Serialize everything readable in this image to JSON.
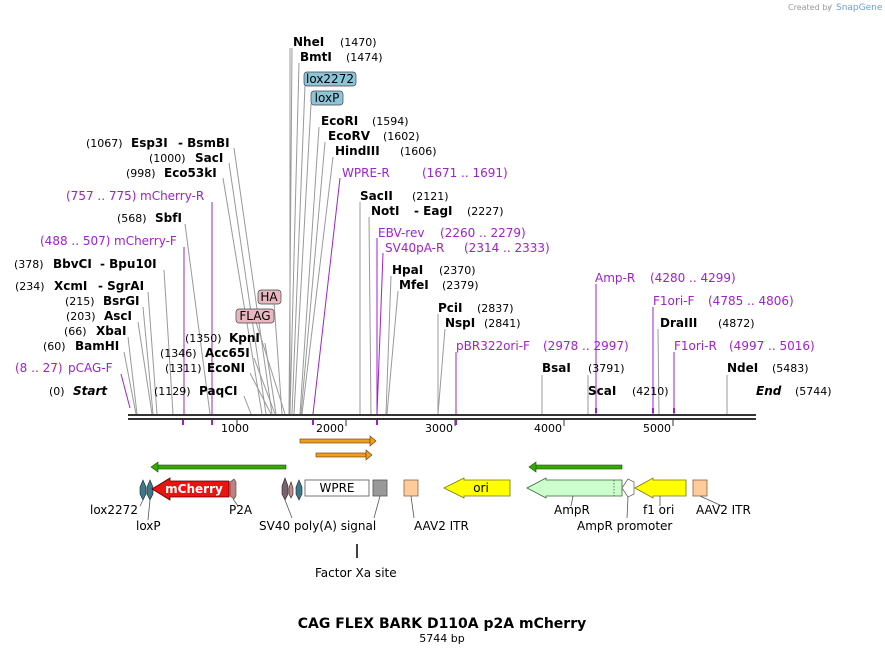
{
  "app": {
    "brand_prefix": "Created by",
    "brand_name": "SnapGene"
  },
  "map": {
    "title": "CAG FLEX BARK D110A p2A mCherry",
    "length_label": "5744 bp",
    "length": 5744,
    "axis_ticks": [
      "1000",
      "2000",
      "3000",
      "4000",
      "5000"
    ]
  },
  "enzymes": [
    {
      "id": "nhei",
      "name": "NheI",
      "pos": "(1470)"
    },
    {
      "id": "bmti",
      "name": "BmtI",
      "pos": "(1474)"
    },
    {
      "id": "ecori",
      "name": "EcoRI",
      "pos": "(1594)"
    },
    {
      "id": "ecorv",
      "name": "EcoRV",
      "pos": "(1602)"
    },
    {
      "id": "hindiii",
      "name": "HindIII",
      "pos": "(1606)"
    },
    {
      "id": "sacii",
      "name": "SacII",
      "pos": "(2121)"
    },
    {
      "id": "noti",
      "name": "NotI",
      "extra": "- EagI",
      "pos": "(2227)"
    },
    {
      "id": "hpai",
      "name": "HpaI",
      "pos": "(2370)"
    },
    {
      "id": "mfei",
      "name": "MfeI",
      "pos": "(2379)"
    },
    {
      "id": "pcii",
      "name": "PciI",
      "pos": "(2837)"
    },
    {
      "id": "nspi",
      "name": "NspI",
      "pos": "(2841)"
    },
    {
      "id": "draiii",
      "name": "DraIII",
      "pos": "(4872)"
    },
    {
      "id": "bsai",
      "name": "BsaI",
      "pos": "(3791)"
    },
    {
      "id": "scai",
      "name": "ScaI",
      "pos": "(4210)"
    },
    {
      "id": "ndei",
      "name": "NdeI",
      "pos": "(5483)"
    },
    {
      "id": "esp3i",
      "name": "Esp3I",
      "extra": "- BsmBI",
      "pos": "(1067)"
    },
    {
      "id": "saci",
      "name": "SacI",
      "pos": "(1000)"
    },
    {
      "id": "eco53ki",
      "name": "Eco53kI",
      "pos": "(998)"
    },
    {
      "id": "sbfi",
      "name": "SbfI",
      "pos": "(568)"
    },
    {
      "id": "bbvci",
      "name": "BbvCI",
      "extra": "- Bpu10I",
      "pos": "(378)"
    },
    {
      "id": "xcmi",
      "name": "XcmI",
      "extra": "- SgrAI",
      "pos": "(234)"
    },
    {
      "id": "bsrgi",
      "name": "BsrGI",
      "pos": "(215)"
    },
    {
      "id": "asci",
      "name": "AscI",
      "pos": "(203)"
    },
    {
      "id": "xbai",
      "name": "XbaI",
      "pos": "(66)"
    },
    {
      "id": "bamhi",
      "name": "BamHI",
      "pos": "(60)"
    },
    {
      "id": "kpni",
      "name": "KpnI",
      "pos": "(1350)"
    },
    {
      "id": "acc65i",
      "name": "Acc65I",
      "pos": "(1346)"
    },
    {
      "id": "econi",
      "name": "EcoNI",
      "pos": "(1311)"
    },
    {
      "id": "paqci",
      "name": "PaqCI",
      "pos": "(1129)"
    }
  ],
  "ends": {
    "start_label": "Start",
    "start_pos": "(0)",
    "end_label": "End",
    "end_pos": "(5744)"
  },
  "primers": [
    {
      "id": "wpre-r",
      "name": "WPRE-R",
      "range": "(1671 .. 1691)"
    },
    {
      "id": "ebv-rev",
      "name": "EBV-rev",
      "range": "(2260 .. 2279)"
    },
    {
      "id": "sv40pa-r",
      "name": "SV40pA-R",
      "range": "(2314 .. 2333)"
    },
    {
      "id": "pbr322ori-f",
      "name": "pBR322ori-F",
      "range": "(2978 .. 2997)"
    },
    {
      "id": "amp-r",
      "name": "Amp-R",
      "range": "(4280 .. 4299)"
    },
    {
      "id": "f1ori-f",
      "name": "F1ori-F",
      "range": "(4785 .. 4806)"
    },
    {
      "id": "f1ori-r",
      "name": "F1ori-R",
      "range": "(4997 .. 5016)"
    },
    {
      "id": "mcherry-r",
      "name": "mCherry-R",
      "range": "(757 .. 775)"
    },
    {
      "id": "mcherry-f",
      "name": "mCherry-F",
      "range": "(488 .. 507)"
    },
    {
      "id": "pcag-f",
      "name": "pCAG-F",
      "range": "(8 .. 27)"
    }
  ],
  "tags": {
    "lox2272": "lox2272",
    "loxp": "loxP",
    "ha": "HA",
    "flag": "FLAG"
  },
  "features": {
    "mcherry": "mCherry",
    "wpre": "WPRE",
    "ori": "ori",
    "lox2272": "lox2272",
    "loxp": "loxP",
    "p2a": "P2A",
    "sv40": "SV40 poly(A) signal",
    "aav2itr_1": "AAV2 ITR",
    "ampr": "AmpR",
    "ampr_promoter": "AmpR promoter",
    "f1ori": "f1 ori",
    "aav2itr_2": "AAV2 ITR",
    "factorxa": "Factor Xa site"
  },
  "colors": {
    "enzyme_line": "#999999",
    "primer": "#a020d0",
    "backbone": "#333333",
    "mcherry": "#ee1111",
    "ori": "#ffff00",
    "ampr": "#ccffcc",
    "f1ori": "#ffff00",
    "aav2itr": "#ffcc99",
    "sv40": "#999999",
    "loxp": "#3b7a8c",
    "tag_blue": "#8cc4d8",
    "tag_pink": "#e8b8c0",
    "orf_arrow": "#f0a020",
    "orf_green": "#33aa00"
  }
}
